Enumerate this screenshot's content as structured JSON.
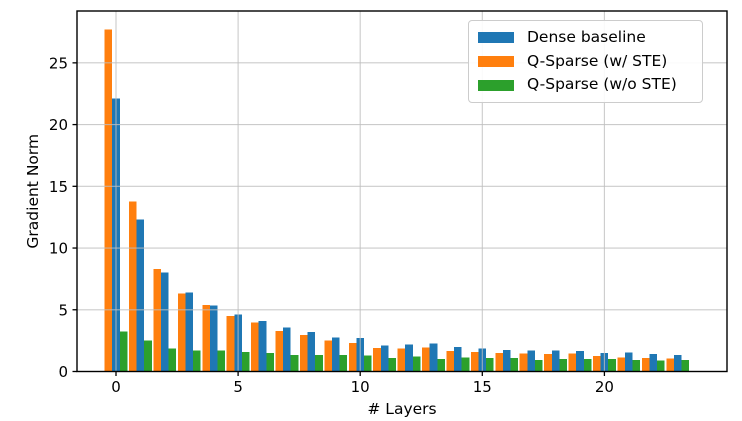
{
  "chart_data": {
    "type": "bar",
    "title": "",
    "xlabel": "# Layers",
    "ylabel": "Gradient Norm",
    "categories": [
      0,
      1,
      2,
      3,
      4,
      5,
      6,
      7,
      8,
      9,
      10,
      11,
      12,
      13,
      14,
      15,
      16,
      17,
      18,
      19,
      20,
      21,
      22,
      23
    ],
    "series": [
      {
        "name": "Dense baseline",
        "color": "#1f77b4",
        "slot": 1,
        "values": [
          22.1,
          12.3,
          8.0,
          6.4,
          5.35,
          4.6,
          4.1,
          3.55,
          3.2,
          2.75,
          2.7,
          2.1,
          2.2,
          2.25,
          2.0,
          1.85,
          1.75,
          1.7,
          1.7,
          1.65,
          1.5,
          1.55,
          1.4,
          1.35
        ]
      },
      {
        "name": "Q-Sparse (w/ STE)",
        "color": "#ff7f0e",
        "slot": 0,
        "values": [
          27.7,
          13.75,
          8.3,
          6.3,
          5.4,
          4.5,
          3.95,
          3.3,
          2.95,
          2.5,
          2.3,
          1.9,
          1.85,
          1.95,
          1.65,
          1.6,
          1.5,
          1.45,
          1.4,
          1.45,
          1.25,
          1.15,
          1.1,
          1.05
        ]
      },
      {
        "name": "Q-Sparse (w/o STE)",
        "color": "#2ca02c",
        "slot": 2,
        "values": [
          3.25,
          2.5,
          1.85,
          1.7,
          1.7,
          1.6,
          1.5,
          1.35,
          1.35,
          1.35,
          1.3,
          1.1,
          1.2,
          1.0,
          1.15,
          1.1,
          1.1,
          0.95,
          1.0,
          1.0,
          1.0,
          0.95,
          0.9,
          0.95
        ]
      }
    ],
    "xticks": [
      0,
      5,
      10,
      15,
      20
    ],
    "yticks": [
      0,
      5,
      10,
      15,
      20,
      25
    ],
    "ylim": [
      0,
      29.2
    ],
    "grid": true,
    "grid_color": "#b8b8b8",
    "legend_position": "upper right",
    "spine_color": "#000000"
  }
}
